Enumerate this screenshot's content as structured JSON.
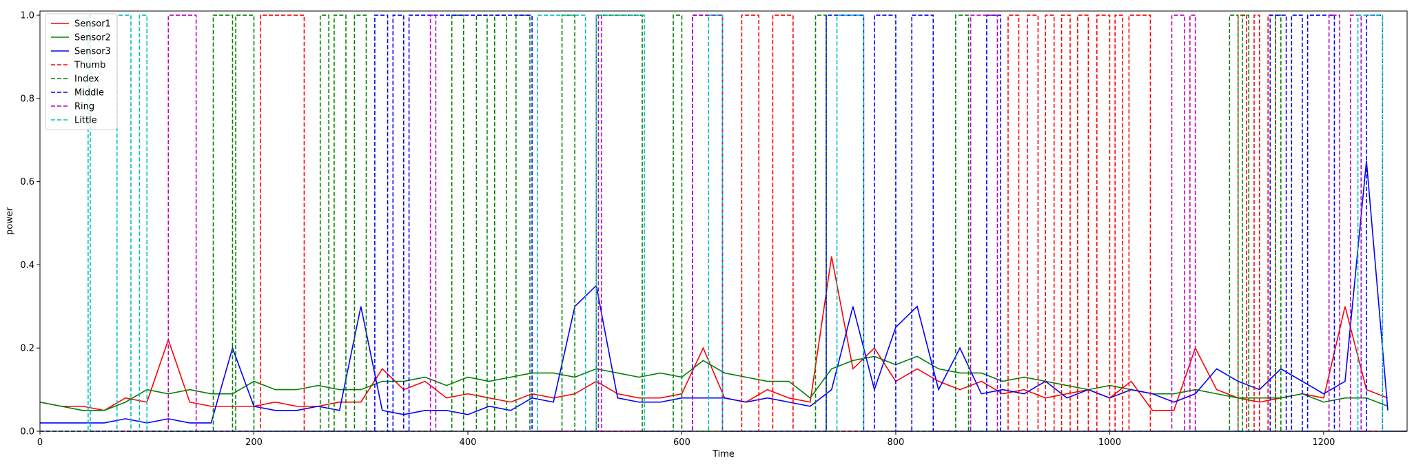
{
  "chart_data": {
    "type": "line",
    "x_label": "Time",
    "y_label": "power",
    "xlim": [
      0,
      1278
    ],
    "ylim": [
      0,
      1.01
    ],
    "xticks": [
      0,
      200,
      400,
      600,
      800,
      1000,
      1200
    ],
    "yticks": [
      {
        "value": 0,
        "label": "0.0"
      },
      {
        "value": 0.2,
        "label": "0.2"
      },
      {
        "value": 0.4,
        "label": "0.4"
      },
      {
        "value": 0.6,
        "label": "0.6"
      },
      {
        "value": 0.8,
        "label": "0.8"
      },
      {
        "value": 1.0,
        "label": "1.0"
      }
    ],
    "legend": "upper left",
    "x": [
      0,
      20,
      40,
      60,
      80,
      100,
      120,
      140,
      160,
      180,
      200,
      220,
      240,
      260,
      280,
      300,
      320,
      340,
      360,
      380,
      400,
      420,
      440,
      460,
      480,
      500,
      520,
      540,
      560,
      580,
      600,
      620,
      640,
      660,
      680,
      700,
      720,
      740,
      760,
      780,
      800,
      820,
      840,
      860,
      880,
      900,
      920,
      940,
      960,
      980,
      1000,
      1020,
      1040,
      1060,
      1080,
      1100,
      1120,
      1140,
      1160,
      1180,
      1200,
      1220,
      1240,
      1260
    ],
    "series": [
      {
        "name": "Sensor1",
        "color": "#ff0000",
        "dash": false,
        "values": [
          0.07,
          0.06,
          0.06,
          0.05,
          0.08,
          0.07,
          0.22,
          0.07,
          0.06,
          0.06,
          0.06,
          0.07,
          0.06,
          0.06,
          0.07,
          0.07,
          0.15,
          0.1,
          0.12,
          0.08,
          0.09,
          0.08,
          0.07,
          0.09,
          0.08,
          0.09,
          0.12,
          0.09,
          0.08,
          0.08,
          0.09,
          0.2,
          0.08,
          0.07,
          0.1,
          0.08,
          0.07,
          0.42,
          0.15,
          0.2,
          0.12,
          0.15,
          0.12,
          0.1,
          0.12,
          0.09,
          0.1,
          0.08,
          0.09,
          0.1,
          0.08,
          0.12,
          0.05,
          0.05,
          0.2,
          0.1,
          0.08,
          0.07,
          0.08,
          0.09,
          0.08,
          0.3,
          0.1,
          0.08
        ]
      },
      {
        "name": "Sensor2",
        "color": "#008000",
        "dash": false,
        "values": [
          0.07,
          0.06,
          0.05,
          0.05,
          0.07,
          0.1,
          0.09,
          0.1,
          0.09,
          0.09,
          0.12,
          0.1,
          0.1,
          0.11,
          0.1,
          0.1,
          0.12,
          0.12,
          0.13,
          0.11,
          0.13,
          0.12,
          0.13,
          0.14,
          0.14,
          0.13,
          0.15,
          0.14,
          0.13,
          0.14,
          0.13,
          0.17,
          0.14,
          0.13,
          0.12,
          0.12,
          0.08,
          0.15,
          0.17,
          0.18,
          0.16,
          0.18,
          0.15,
          0.14,
          0.14,
          0.12,
          0.13,
          0.12,
          0.11,
          0.1,
          0.11,
          0.1,
          0.09,
          0.09,
          0.1,
          0.09,
          0.08,
          0.08,
          0.08,
          0.09,
          0.07,
          0.08,
          0.08,
          0.06
        ]
      },
      {
        "name": "Sensor3",
        "color": "#0000ff",
        "dash": false,
        "values": [
          0.02,
          0.02,
          0.02,
          0.02,
          0.03,
          0.02,
          0.03,
          0.02,
          0.02,
          0.2,
          0.06,
          0.05,
          0.05,
          0.06,
          0.05,
          0.3,
          0.05,
          0.04,
          0.05,
          0.05,
          0.04,
          0.06,
          0.05,
          0.08,
          0.07,
          0.3,
          0.35,
          0.08,
          0.07,
          0.07,
          0.08,
          0.08,
          0.08,
          0.07,
          0.08,
          0.07,
          0.06,
          0.1,
          0.3,
          0.1,
          0.25,
          0.3,
          0.1,
          0.2,
          0.09,
          0.1,
          0.09,
          0.12,
          0.08,
          0.1,
          0.08,
          0.1,
          0.09,
          0.07,
          0.09,
          0.15,
          0.12,
          0.1,
          0.15,
          0.12,
          0.09,
          0.12,
          0.65,
          0.05
        ]
      },
      {
        "name": "Thumb",
        "color": "#ff0000",
        "dash": true,
        "x": [
          0,
          206,
          247,
          656,
          672,
          685,
          704,
          905,
          915,
          923,
          933,
          940,
          948,
          955,
          963,
          970,
          980,
          988,
          1000,
          1005,
          1012,
          1018,
          1038,
          1120,
          1128,
          1135,
          1140,
          1148,
          1155,
          1278
        ],
        "values": [
          0,
          1,
          0,
          1,
          0,
          1,
          0,
          1,
          0,
          1,
          0,
          1,
          0,
          1,
          0,
          1,
          0,
          1,
          0,
          1,
          0,
          1,
          0,
          1,
          0,
          1,
          0,
          1,
          0,
          0
        ]
      },
      {
        "name": "Index",
        "color": "#008000",
        "dash": true,
        "x": [
          0,
          162,
          180,
          183,
          200,
          262,
          270,
          275,
          286,
          294,
          305,
          385,
          396,
          408,
          418,
          425,
          436,
          445,
          458,
          488,
          500,
          520,
          563,
          592,
          600,
          725,
          735,
          856,
          868,
          1112,
          1120,
          1124,
          1130,
          1155,
          1160,
          1278
        ],
        "values": [
          0,
          1,
          0,
          1,
          0,
          1,
          0,
          1,
          0,
          1,
          0,
          1,
          0,
          1,
          0,
          1,
          0,
          1,
          0,
          1,
          0,
          1,
          0,
          1,
          0,
          1,
          0,
          1,
          0,
          1,
          0,
          1,
          0,
          1,
          0,
          0
        ]
      },
      {
        "name": "Middle",
        "color": "#0000ff",
        "dash": true,
        "x": [
          0,
          313,
          325,
          330,
          340,
          345,
          460,
          610,
          638,
          735,
          770,
          780,
          800,
          815,
          835,
          885,
          898,
          1150,
          1165,
          1170,
          1180,
          1185,
          1210,
          1240,
          1255,
          1278
        ],
        "values": [
          0,
          1,
          0,
          1,
          0,
          1,
          0,
          1,
          0,
          1,
          0,
          1,
          0,
          1,
          0,
          1,
          0,
          1,
          0,
          1,
          0,
          1,
          0,
          1,
          0,
          0
        ]
      },
      {
        "name": "Ring",
        "color": "#bf00bf",
        "dash": true,
        "x": [
          0,
          120,
          146,
          365,
          370,
          522,
          525,
          610,
          638,
          870,
          895,
          1058,
          1070,
          1075,
          1080,
          1205,
          1215,
          1225,
          1235,
          1278
        ],
        "values": [
          0,
          1,
          0,
          1,
          0,
          1,
          0,
          1,
          0,
          1,
          0,
          1,
          0,
          1,
          0,
          1,
          0,
          1,
          0,
          0
        ]
      },
      {
        "name": "Little",
        "color": "#00bfbf",
        "dash": true,
        "x": [
          0,
          45,
          47,
          72,
          85,
          93,
          100,
          465,
          510,
          520,
          565,
          625,
          638,
          745,
          770,
          1232,
          1255,
          1278
        ],
        "values": [
          0,
          1,
          0,
          1,
          0,
          1,
          0,
          1,
          0,
          1,
          0,
          1,
          0,
          1,
          0,
          1,
          0,
          0
        ]
      }
    ]
  }
}
